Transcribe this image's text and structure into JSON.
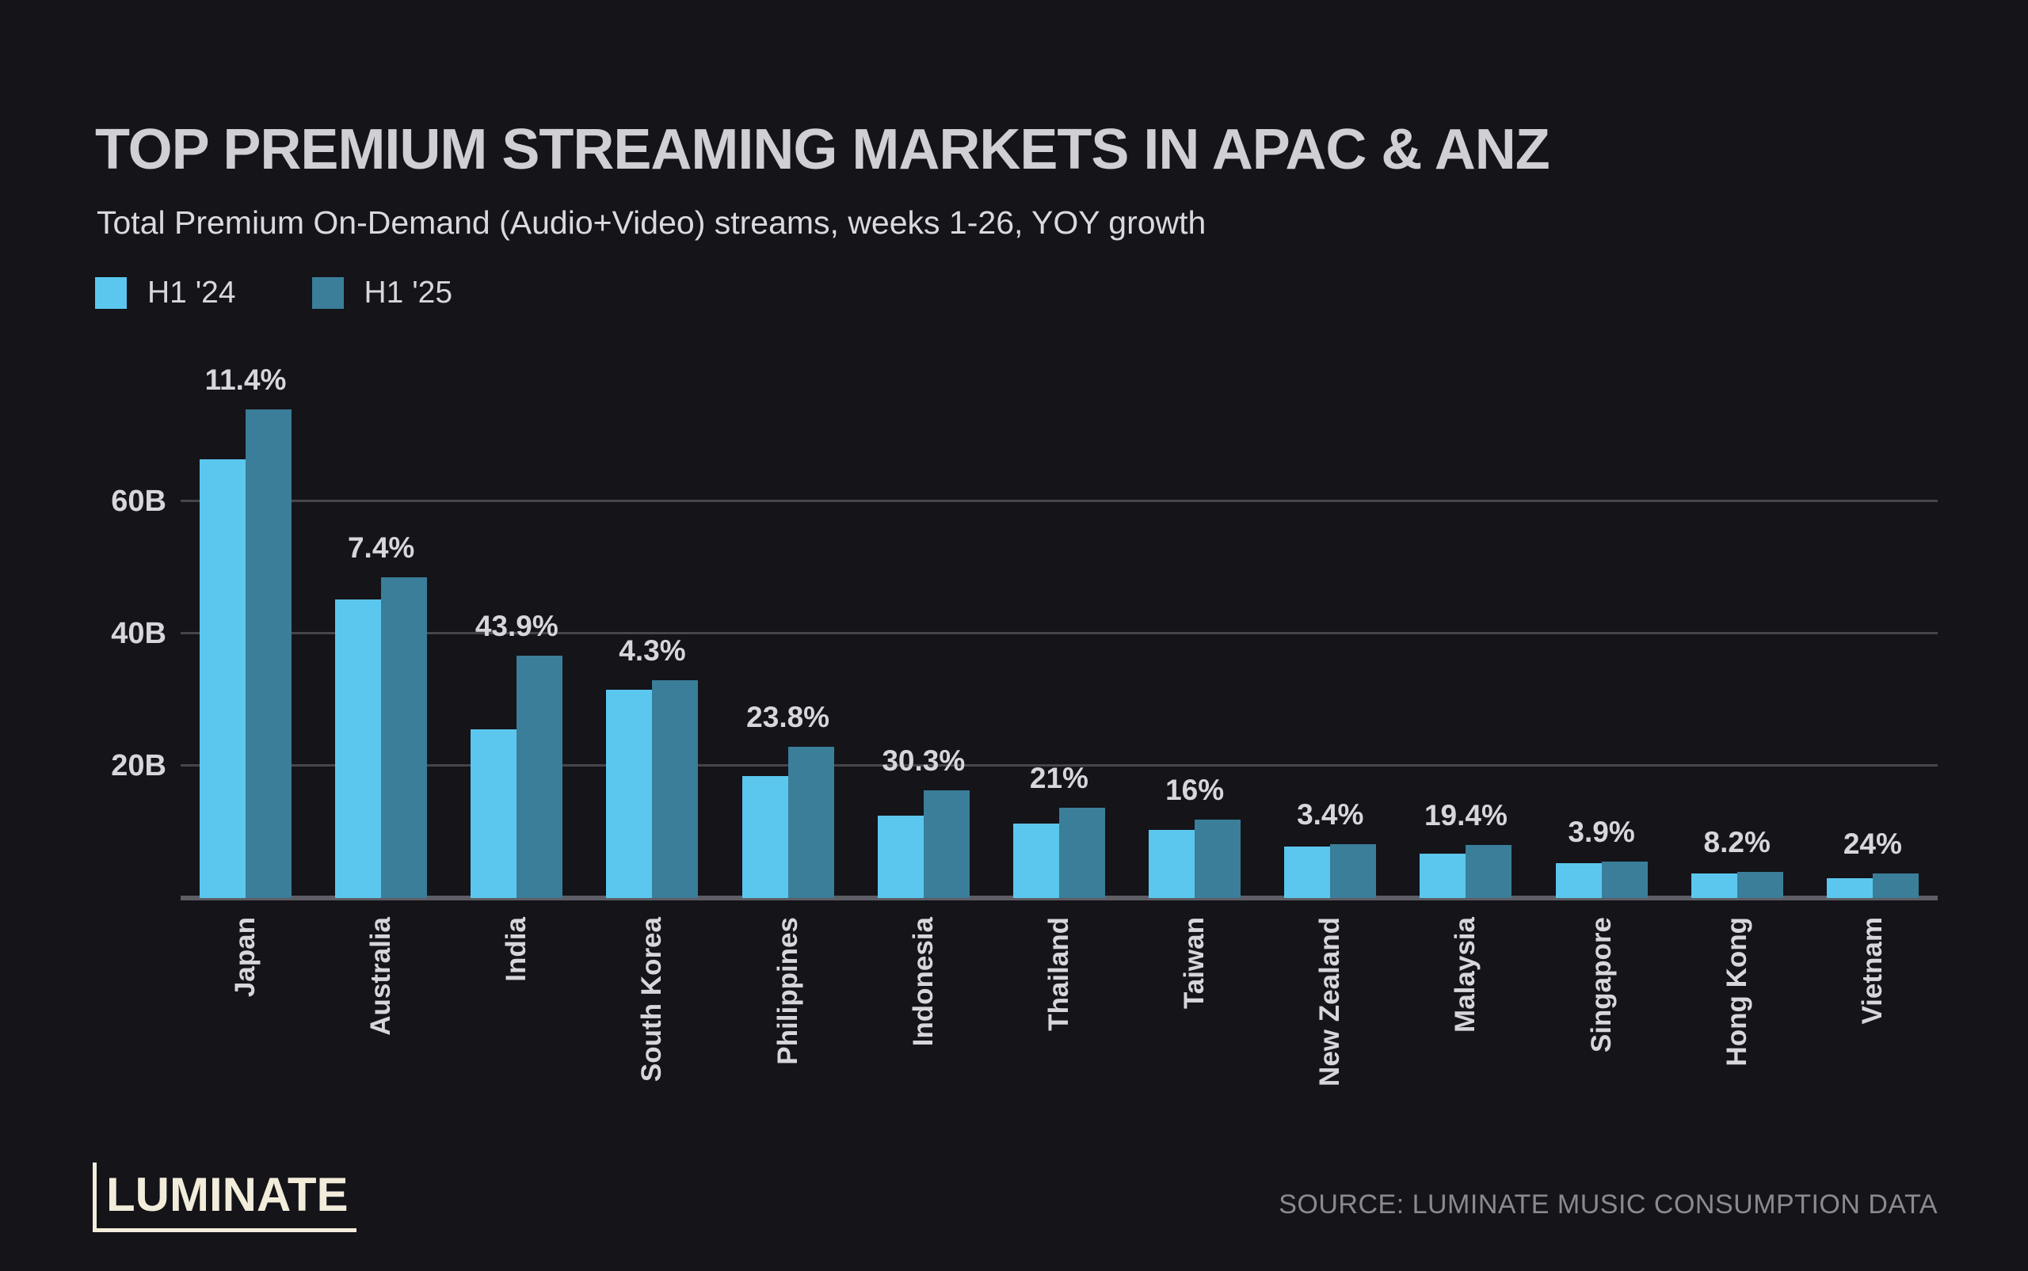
{
  "header": {
    "title": "TOP PREMIUM STREAMING MARKETS IN APAC & ANZ",
    "subtitle": "Total Premium On-Demand (Audio+Video) streams, weeks 1-26, YOY growth"
  },
  "legend": {
    "items": [
      {
        "label": "H1 '24",
        "color": "#5bc7ee"
      },
      {
        "label": "H1 '25",
        "color": "#3a7e99"
      }
    ]
  },
  "footer": {
    "logo_text": "LUMINATE",
    "source": "SOURCE: LUMINATE MUSIC CONSUMPTION DATA"
  },
  "colors": {
    "background": "#141419",
    "bar_h1_24": "#5bc7ee",
    "bar_h1_25": "#3a7e99",
    "gridline": "#45454c",
    "axis_line": "#5e5e66",
    "text": "#d7d7db",
    "muted_text": "#8a8a91",
    "logo": "#f2ecda"
  },
  "chart_data": {
    "type": "bar",
    "title": "TOP PREMIUM STREAMING MARKETS IN APAC & ANZ",
    "subtitle": "Total Premium On-Demand (Audio+Video) streams, weeks 1-26, YOY growth",
    "unit": "billions of streams",
    "categories": [
      "Japan",
      "Australia",
      "India",
      "South Korea",
      "Philippines",
      "Indonesia",
      "Thailand",
      "Taiwan",
      "New Zealand",
      "Malaysia",
      "Singapore",
      "Hong Kong",
      "Vietnam"
    ],
    "series": [
      {
        "name": "H1 '24",
        "values": [
          66.3,
          45.2,
          25.5,
          31.5,
          18.5,
          12.5,
          11.3,
          10.3,
          7.8,
          6.7,
          5.3,
          3.7,
          3.0
        ]
      },
      {
        "name": "H1 '25",
        "values": [
          73.9,
          48.5,
          36.7,
          32.9,
          22.9,
          16.3,
          13.7,
          11.9,
          8.1,
          8.0,
          5.5,
          4.0,
          3.7
        ]
      }
    ],
    "growth_labels": [
      "11.4%",
      "7.4%",
      "43.9%",
      "4.3%",
      "23.8%",
      "30.3%",
      "21%",
      "16%",
      "3.4%",
      "19.4%",
      "3.9%",
      "8.2%",
      "24%"
    ],
    "yticks": [
      {
        "value": 20,
        "label": "20B"
      },
      {
        "value": 40,
        "label": "40B"
      },
      {
        "value": 60,
        "label": "60B"
      }
    ],
    "ylim": [
      0,
      79
    ],
    "grid": true,
    "legend_position": "top-left"
  }
}
